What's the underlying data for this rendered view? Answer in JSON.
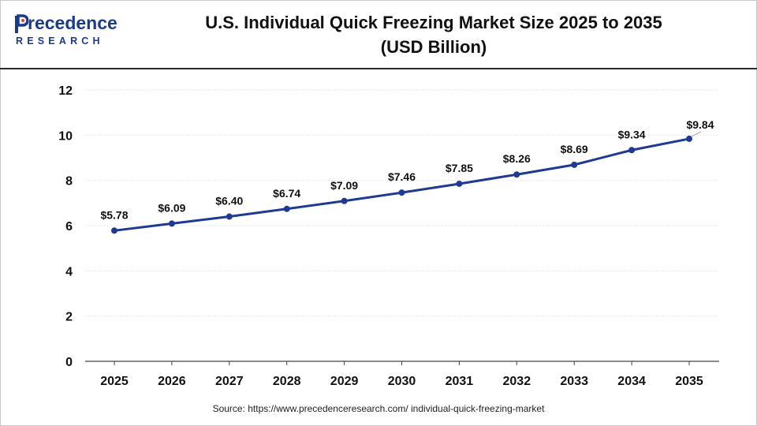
{
  "brand": {
    "name_main": "recedence",
    "name_initial": "P",
    "name_sub": "RESEARCH",
    "color": "#1a3a8c"
  },
  "header": {
    "title_line1": "U.S. Individual Quick Freezing Market Size 2025 to 2035",
    "title_line2": "(USD Billion)"
  },
  "footer": {
    "source": "Source: https://www.precedenceresearch.com/ individual-quick-freezing-market"
  },
  "chart_data": {
    "type": "line",
    "title": "U.S. Individual Quick Freezing Market Size 2025 to 2035 (USD Billion)",
    "categories": [
      "2025",
      "2026",
      "2027",
      "2028",
      "2029",
      "2030",
      "2031",
      "2032",
      "2033",
      "2034",
      "2035"
    ],
    "series": [
      {
        "values": [
          5.78,
          6.09,
          6.4,
          6.74,
          7.09,
          7.46,
          7.85,
          8.26,
          8.69,
          9.34,
          9.84
        ],
        "labels": [
          "$5.78",
          "$6.09",
          "$6.40",
          "$6.74",
          "$7.09",
          "$7.46",
          "$7.85",
          "$8.26",
          "$8.69",
          "$9.34",
          "$9.84"
        ],
        "color": "#1f3a93"
      }
    ],
    "y_ticks": [
      "0",
      "2",
      "4",
      "6",
      "8",
      "10",
      "12"
    ],
    "ylim": [
      0,
      12
    ],
    "grid": true,
    "legend": "none"
  }
}
